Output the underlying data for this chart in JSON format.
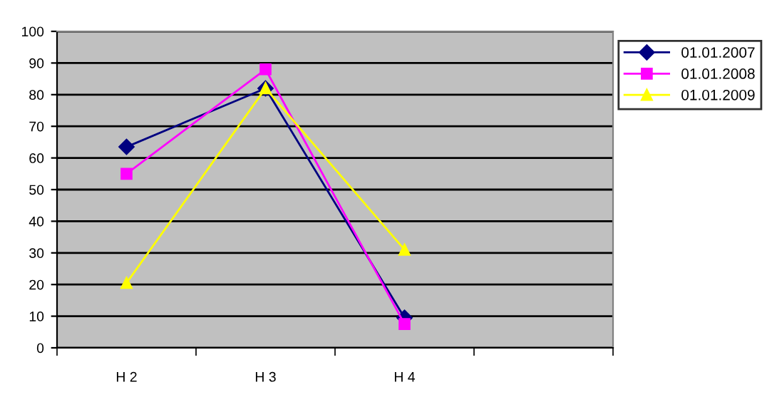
{
  "chart_data": {
    "type": "line",
    "categories": [
      "H 2",
      "H 3",
      "H 4",
      null
    ],
    "ylim": [
      0,
      100
    ],
    "yticks": [
      0,
      10,
      20,
      30,
      40,
      50,
      60,
      70,
      80,
      90,
      100
    ],
    "grid": "y",
    "legend": "right",
    "series": [
      {
        "name": "01.01.2007",
        "color": "#000080",
        "marker": "diamond",
        "values": [
          63.5,
          82,
          9.5,
          null
        ]
      },
      {
        "name": "01.01.2008",
        "color": "#ff00ff",
        "marker": "square",
        "values": [
          55,
          88,
          7.5,
          null
        ]
      },
      {
        "name": "01.01.2009",
        "color": "#ffff00",
        "marker": "triangle",
        "values": [
          20.5,
          82,
          31,
          null
        ]
      }
    ]
  }
}
